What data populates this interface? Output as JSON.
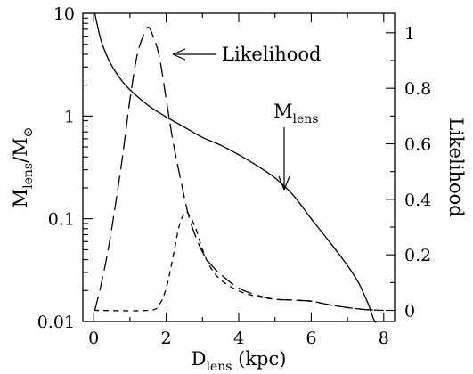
{
  "chart_data": {
    "type": "line",
    "xlabel": {
      "main": "D",
      "sub": "lens",
      "rest": " (kpc)"
    },
    "ylabel_left": {
      "main": "M",
      "sub": "lens",
      "rest": "/M",
      "sub2": "⊙"
    },
    "ylabel_right": "Likelihood",
    "xlim": [
      -0.3,
      8.3
    ],
    "ylim_left": [
      0.01,
      10
    ],
    "ylim_left_scale": "log",
    "ylim_right": [
      -0.04,
      1.07
    ],
    "grid": false,
    "x_ticks": [
      0,
      2,
      4,
      6,
      8
    ],
    "x_tick_labels": [
      "0",
      "2",
      "4",
      "6",
      "8"
    ],
    "y_left_ticks": [
      0.01,
      0.1,
      1,
      10
    ],
    "y_left_tick_labels": [
      "0.01",
      "0.1",
      "1",
      "10"
    ],
    "y_right_ticks": [
      0,
      0.2,
      0.4,
      0.6,
      0.8,
      1
    ],
    "y_right_tick_labels": [
      "0",
      "0.2",
      "0.4",
      "0.6",
      "0.8",
      "1"
    ],
    "annotations": [
      {
        "text": "Likelihood"
      },
      {
        "text_main": "M",
        "text_sub": "lens"
      }
    ],
    "series": [
      {
        "axis": "left",
        "style": "solid",
        "x": [
          0.03,
          0.2,
          0.4,
          0.6,
          0.8,
          1.0,
          1.3,
          1.6,
          2.0,
          2.5,
          3.0,
          3.5,
          4.0,
          4.5,
          5.0,
          5.5,
          6.0,
          6.5,
          7.0,
          7.3,
          7.5,
          7.6,
          7.7,
          7.78
        ],
        "y": [
          10,
          5.5,
          3.6,
          2.7,
          2.15,
          1.8,
          1.45,
          1.2,
          0.98,
          0.78,
          0.62,
          0.52,
          0.42,
          0.33,
          0.25,
          0.17,
          0.1,
          0.06,
          0.035,
          0.024,
          0.017,
          0.014,
          0.011,
          0.0097
        ]
      },
      {
        "axis": "right",
        "style": "long-dash",
        "x": [
          0.03,
          0.2,
          0.4,
          0.6,
          0.8,
          1.0,
          1.2,
          1.4,
          1.5,
          1.6,
          1.8,
          2.0,
          2.2,
          2.4,
          2.6,
          2.8,
          3.0,
          3.2,
          3.5,
          4.0,
          4.5,
          5.0,
          5.5,
          6.0,
          6.5,
          7.0,
          7.5,
          8.0
        ],
        "y": [
          0.0,
          0.09,
          0.22,
          0.38,
          0.56,
          0.76,
          0.92,
          1.0,
          1.02,
          1.0,
          0.92,
          0.76,
          0.6,
          0.47,
          0.35,
          0.27,
          0.21,
          0.17,
          0.13,
          0.08,
          0.055,
          0.04,
          0.037,
          0.033,
          0.02,
          0.01,
          0.003,
          0.0
        ]
      },
      {
        "axis": "right",
        "style": "short-dash",
        "x": [
          0.0,
          1.5,
          1.8,
          2.0,
          2.2,
          2.35,
          2.5,
          2.6,
          2.8,
          3.0,
          3.2,
          3.5,
          4.0,
          4.5,
          5.0,
          5.5,
          6.0,
          6.5,
          7.0,
          7.5,
          8.0
        ],
        "y": [
          0.0,
          0.0,
          0.02,
          0.08,
          0.2,
          0.3,
          0.35,
          0.35,
          0.3,
          0.22,
          0.16,
          0.11,
          0.07,
          0.05,
          0.04,
          0.037,
          0.033,
          0.02,
          0.01,
          0.003,
          0.0
        ]
      }
    ]
  }
}
